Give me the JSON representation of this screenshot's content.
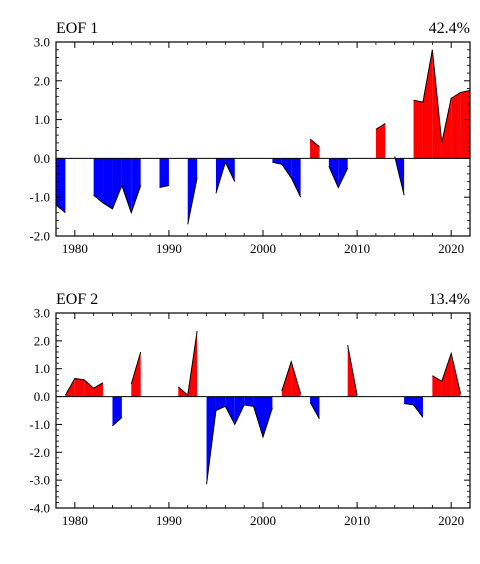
{
  "chart_data": [
    {
      "type": "line",
      "title": "EOF 1",
      "right_title": "42.4%",
      "xlim": [
        1978,
        2022
      ],
      "ylim": [
        -2.0,
        3.0
      ],
      "xticks": [
        1980,
        1990,
        2000,
        2010,
        2020
      ],
      "yticks": [
        -2.0,
        -1.0,
        0.0,
        1.0,
        2.0,
        3.0
      ],
      "ytick_labels": [
        "-2.0",
        "-1.0",
        "0.0",
        "1.0",
        "2.0",
        "3.0"
      ],
      "reference_line": 0.0,
      "positive_fill": "#ff0000",
      "negative_fill": "#0000ff",
      "segments": [
        {
          "x": [
            1978,
            1979
          ],
          "y": [
            -1.2,
            -1.4
          ]
        },
        {
          "x": [
            1982,
            1983,
            1984,
            1985,
            1986,
            1987
          ],
          "y": [
            -0.95,
            -1.15,
            -1.3,
            -0.7,
            -1.4,
            -0.7
          ]
        },
        {
          "x": [
            1989,
            1990
          ],
          "y": [
            -0.75,
            -0.7
          ]
        },
        {
          "x": [
            1992,
            1993
          ],
          "y": [
            -1.7,
            -0.5
          ]
        },
        {
          "x": [
            1995,
            1996,
            1997
          ],
          "y": [
            -0.9,
            -0.1,
            -0.6
          ]
        },
        {
          "x": [
            2001,
            2002,
            2003,
            2004
          ],
          "y": [
            -0.1,
            -0.15,
            -0.5,
            -1.0
          ]
        },
        {
          "x": [
            2005,
            2006
          ],
          "y": [
            0.5,
            0.3
          ]
        },
        {
          "x": [
            2007,
            2008,
            2009
          ],
          "y": [
            -0.2,
            -0.75,
            -0.25
          ]
        },
        {
          "x": [
            2012,
            2013
          ],
          "y": [
            0.75,
            0.9
          ]
        },
        {
          "x": [
            2014,
            2015
          ],
          "y": [
            0.05,
            -0.95
          ]
        },
        {
          "x": [
            2016,
            2017,
            2018,
            2019,
            2020,
            2021,
            2022
          ],
          "y": [
            1.5,
            1.45,
            2.8,
            0.4,
            1.55,
            1.7,
            1.75
          ]
        }
      ]
    },
    {
      "type": "line",
      "title": "EOF 2",
      "right_title": "13.4%",
      "xlim": [
        1978,
        2022
      ],
      "ylim": [
        -4.0,
        3.0
      ],
      "xticks": [
        1980,
        1990,
        2000,
        2010,
        2020
      ],
      "yticks": [
        -4.0,
        -3.0,
        -2.0,
        -1.0,
        0.0,
        1.0,
        2.0,
        3.0
      ],
      "ytick_labels": [
        "-4.0",
        "-3.0",
        "-2.0",
        "-1.0",
        "0.0",
        "1.0",
        "2.0",
        "3.0"
      ],
      "reference_line": 0.0,
      "positive_fill": "#ff0000",
      "negative_fill": "#0000ff",
      "segments": [
        {
          "x": [
            1979,
            1980,
            1981,
            1982,
            1983
          ],
          "y": [
            0.05,
            0.65,
            0.6,
            0.3,
            0.5
          ]
        },
        {
          "x": [
            1984,
            1985
          ],
          "y": [
            -1.05,
            -0.75
          ]
        },
        {
          "x": [
            1986,
            1987
          ],
          "y": [
            0.45,
            1.6
          ]
        },
        {
          "x": [
            1991,
            1992,
            1993
          ],
          "y": [
            0.35,
            0.05,
            2.35
          ]
        },
        {
          "x": [
            1994,
            1995,
            1996,
            1997,
            1998,
            1999,
            2000,
            2001
          ],
          "y": [
            -3.15,
            -0.5,
            -0.35,
            -1.0,
            -0.3,
            -0.35,
            -1.45,
            -0.4
          ]
        },
        {
          "x": [
            2002,
            2003,
            2004
          ],
          "y": [
            0.2,
            1.25,
            0.1
          ]
        },
        {
          "x": [
            2005,
            2006
          ],
          "y": [
            -0.2,
            -0.8
          ]
        },
        {
          "x": [
            2009,
            2010
          ],
          "y": [
            1.85,
            0.05
          ]
        },
        {
          "x": [
            2015,
            2016,
            2017
          ],
          "y": [
            -0.25,
            -0.3,
            -0.75
          ]
        },
        {
          "x": [
            2018,
            2019,
            2020,
            2021
          ],
          "y": [
            0.75,
            0.55,
            1.55,
            0.1
          ]
        }
      ]
    }
  ]
}
